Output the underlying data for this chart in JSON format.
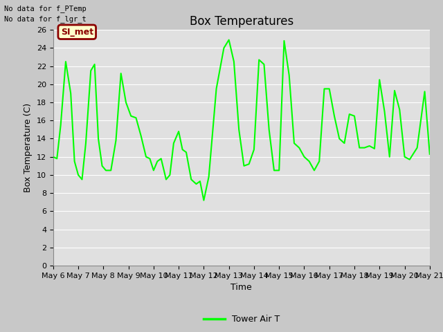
{
  "title": "Box Temperatures",
  "xlabel": "Time",
  "ylabel": "Box Temperature (C)",
  "ylim": [
    0,
    26
  ],
  "yticks": [
    0,
    2,
    4,
    6,
    8,
    10,
    12,
    14,
    16,
    18,
    20,
    22,
    24,
    26
  ],
  "line_color": "#00FF00",
  "line_width": 1.5,
  "fig_bg_color": "#C8C8C8",
  "plot_bg_color": "#E0E0E0",
  "text_no_data1": "No data for f_PTemp",
  "text_no_data2": "No data for f_lgr_t",
  "legend_label": "Tower Air T",
  "legend_line_color": "#00FF00",
  "annotation_box_text": "SI_met",
  "annotation_box_bg": "#FFFFCC",
  "annotation_box_border": "#8B0000",
  "title_fontsize": 12,
  "label_fontsize": 9,
  "tick_fontsize": 8,
  "x_dates": [
    6.0,
    6.15,
    6.3,
    6.5,
    6.7,
    6.85,
    7.0,
    7.15,
    7.3,
    7.5,
    7.65,
    7.8,
    7.95,
    8.1,
    8.3,
    8.5,
    8.7,
    8.9,
    9.1,
    9.3,
    9.5,
    9.7,
    9.85,
    10.0,
    10.15,
    10.3,
    10.5,
    10.65,
    10.8,
    11.0,
    11.15,
    11.3,
    11.5,
    11.7,
    11.85,
    12.0,
    12.2,
    12.5,
    12.8,
    13.0,
    13.2,
    13.4,
    13.6,
    13.8,
    14.0,
    14.2,
    14.4,
    14.6,
    14.8,
    15.0,
    15.2,
    15.4,
    15.6,
    15.8,
    16.0,
    16.2,
    16.4,
    16.6,
    16.8,
    17.0,
    17.2,
    17.4,
    17.6,
    17.8,
    18.0,
    18.2,
    18.4,
    18.6,
    18.8,
    19.0,
    19.2,
    19.4,
    19.6,
    19.8,
    20.0,
    20.2,
    20.5,
    20.8,
    21.0
  ],
  "y_values": [
    12.0,
    11.8,
    15.5,
    22.5,
    19.0,
    11.5,
    10.0,
    9.5,
    13.5,
    21.5,
    22.2,
    14.0,
    11.0,
    10.5,
    10.5,
    13.8,
    21.2,
    18.0,
    16.5,
    16.3,
    14.3,
    12.0,
    11.8,
    10.5,
    11.5,
    11.8,
    9.5,
    10.0,
    13.5,
    14.8,
    12.8,
    12.5,
    9.5,
    9.0,
    9.3,
    7.2,
    9.8,
    19.5,
    24.0,
    24.9,
    22.5,
    15.0,
    11.0,
    11.2,
    12.8,
    22.7,
    22.2,
    15.0,
    10.5,
    10.5,
    24.8,
    21.0,
    13.5,
    13.0,
    12.0,
    11.5,
    10.5,
    11.5,
    19.5,
    19.5,
    16.5,
    14.0,
    13.5,
    16.7,
    16.5,
    13.0,
    13.0,
    13.2,
    12.9,
    20.5,
    17.0,
    12.0,
    19.3,
    17.2,
    12.0,
    11.7,
    13.0,
    19.2,
    12.3
  ],
  "xtick_positions": [
    6,
    7,
    8,
    9,
    10,
    11,
    12,
    13,
    14,
    15,
    16,
    17,
    18,
    19,
    20,
    21
  ],
  "xtick_labels": [
    "May 6",
    "May 7",
    "May 8",
    "May 9",
    "May 10",
    "May 11",
    "May 12",
    "May 13",
    "May 14",
    "May 15",
    "May 16",
    "May 17",
    "May 18",
    "May 19",
    "May 20",
    "May 21"
  ]
}
